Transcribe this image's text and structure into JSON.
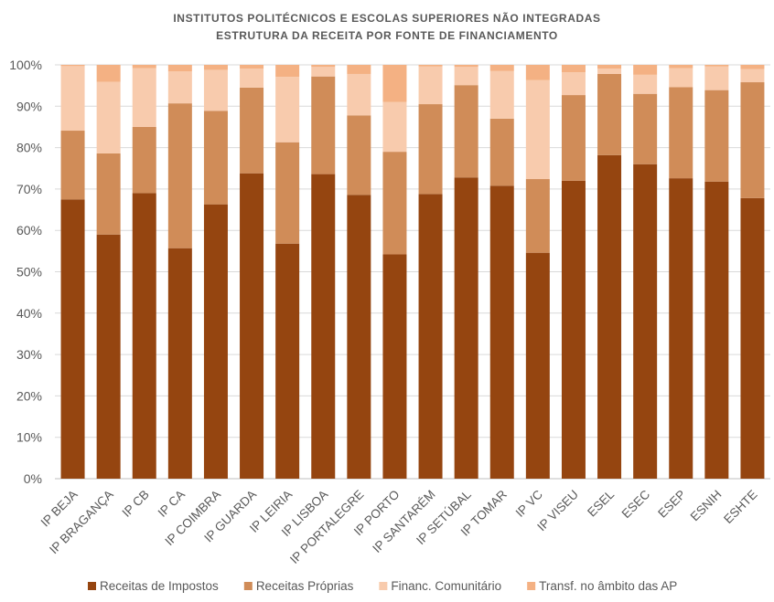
{
  "chart_data": {
    "type": "bar",
    "stacked": true,
    "title": [
      "INSTITUTOS POLITÉCNICOS E ESCOLAS SUPERIORES NÃO INTEGRADAS",
      "ESTRUTURA DA RECEITA POR FONTE DE FINANCIAMENTO"
    ],
    "xlabel": "",
    "ylabel": "",
    "ylim": [
      0,
      100
    ],
    "yticks": [
      "0%",
      "10%",
      "20%",
      "30%",
      "40%",
      "50%",
      "60%",
      "70%",
      "80%",
      "90%",
      "100%"
    ],
    "grid": true,
    "legend_position": "bottom",
    "categories": [
      "IP BEJA",
      "IP BRAGANÇA",
      "IP CB",
      "IP CA",
      "IP COIMBRA",
      "IP GUARDA",
      "IP LEIRIA",
      "IP LISBOA",
      "IP PORTALEGRE",
      "IP PORTO",
      "IP SANTARÉM",
      "IP SETÚBAL",
      "IP TOMAR",
      "IP VC",
      "IP VISEU",
      "ESEL",
      "ESEC",
      "ESEP",
      "ESNIH",
      "ESHTE"
    ],
    "series": [
      {
        "name": "Receitas de Impostos",
        "color": "#954510",
        "values": [
          67.5,
          59,
          69,
          55.7,
          66.3,
          73.8,
          56.8,
          73.6,
          68.6,
          54.2,
          68.8,
          72.8,
          70.8,
          54.6,
          72,
          78.2,
          76,
          72.6,
          71.8,
          67.8
        ]
      },
      {
        "name": "Receitas Próprias",
        "color": "#D08C58",
        "values": [
          16.6,
          19.6,
          16,
          35,
          22.6,
          20.7,
          24.5,
          23.6,
          19.2,
          24.8,
          21.7,
          22.3,
          16.2,
          17.8,
          20.7,
          19.6,
          17,
          22,
          22.1,
          28
        ]
      },
      {
        "name": "Financ. Comunitário",
        "color": "#F8CBAD",
        "values": [
          15.6,
          17.3,
          14.2,
          7.7,
          9.9,
          4.6,
          15.8,
          2.3,
          10,
          12,
          9.1,
          4.4,
          11.5,
          23.9,
          5.5,
          1.3,
          4.6,
          4.6,
          5.7,
          3.2
        ]
      },
      {
        "name": "Transf. no âmbito das AP",
        "color": "#F4B183",
        "values": [
          0.3,
          4.1,
          0.8,
          1.6,
          1.2,
          0.9,
          2.9,
          0.5,
          2.2,
          9,
          0.4,
          0.5,
          1.5,
          3.7,
          1.8,
          0.9,
          2.4,
          0.8,
          0.4,
          1
        ]
      }
    ]
  }
}
